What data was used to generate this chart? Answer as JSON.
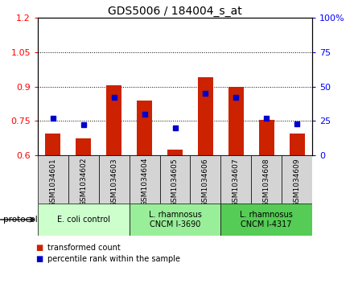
{
  "title": "GDS5006 / 184004_s_at",
  "samples": [
    "GSM1034601",
    "GSM1034602",
    "GSM1034603",
    "GSM1034604",
    "GSM1034605",
    "GSM1034606",
    "GSM1034607",
    "GSM1034608",
    "GSM1034609"
  ],
  "transformed_count": [
    0.695,
    0.675,
    0.905,
    0.84,
    0.625,
    0.94,
    0.9,
    0.755,
    0.695
  ],
  "percentile_rank": [
    27,
    22,
    42,
    30,
    20,
    45,
    42,
    27,
    23
  ],
  "ylim_left": [
    0.6,
    1.2
  ],
  "ylim_right": [
    0,
    100
  ],
  "yticks_left": [
    0.6,
    0.75,
    0.9,
    1.05,
    1.2
  ],
  "yticks_right": [
    0,
    25,
    50,
    75,
    100
  ],
  "ytick_labels_right": [
    "0",
    "25",
    "50",
    "75",
    "100%"
  ],
  "bar_color": "#cc2200",
  "dot_color": "#0000cc",
  "protocol_groups": [
    {
      "label": "E. coli control",
      "start": 0,
      "end": 3,
      "color": "#ccffcc"
    },
    {
      "label": "L. rhamnosus\nCNCM I-3690",
      "start": 3,
      "end": 6,
      "color": "#99ee99"
    },
    {
      "label": "L. rhamnosus\nCNCM I-4317",
      "start": 6,
      "end": 9,
      "color": "#55cc55"
    }
  ],
  "legend_items": [
    {
      "label": "transformed count",
      "color": "#cc2200"
    },
    {
      "label": "percentile rank within the sample",
      "color": "#0000cc"
    }
  ],
  "bar_width": 0.5,
  "baseline": 0.6,
  "sample_box_color": "#d4d4d4"
}
